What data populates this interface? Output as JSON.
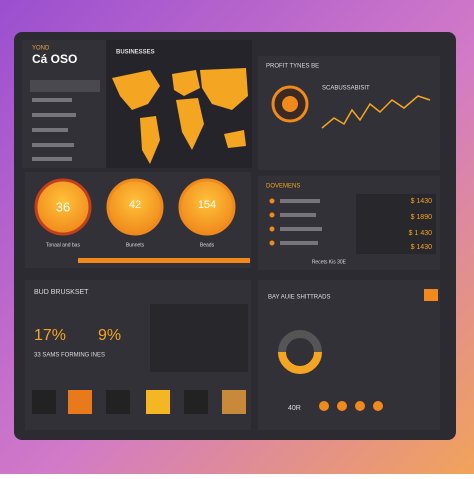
{
  "header": {
    "brand": "YOND",
    "title": "Cá OSO"
  },
  "map_panel": {
    "title": "BUSINESSES"
  },
  "profit_panel": {
    "title": "PROFIT TYNES BE",
    "subtitle": "SCABUSSABISIT"
  },
  "gauges": [
    {
      "value": "36",
      "label": "Tonaal and bas"
    },
    {
      "value": "42",
      "label": "Bunnets"
    },
    {
      "value": "154",
      "label": "Beads"
    }
  ],
  "list_panel": {
    "title": "DOVEMENS",
    "rows": [
      "$ 1430",
      "$ 1890",
      "$ 1 430",
      "$ 1430"
    ],
    "footer": "Recets Kis 30E"
  },
  "budget_panel": {
    "title": "BUD BRUSKSET",
    "stat_a": "17%",
    "stat_b": "9%",
    "caption": "33 SAMS FORMING INES"
  },
  "traffic_panel": {
    "title": "BAY AUIE SHITTRADS",
    "stat": "40R"
  }
}
